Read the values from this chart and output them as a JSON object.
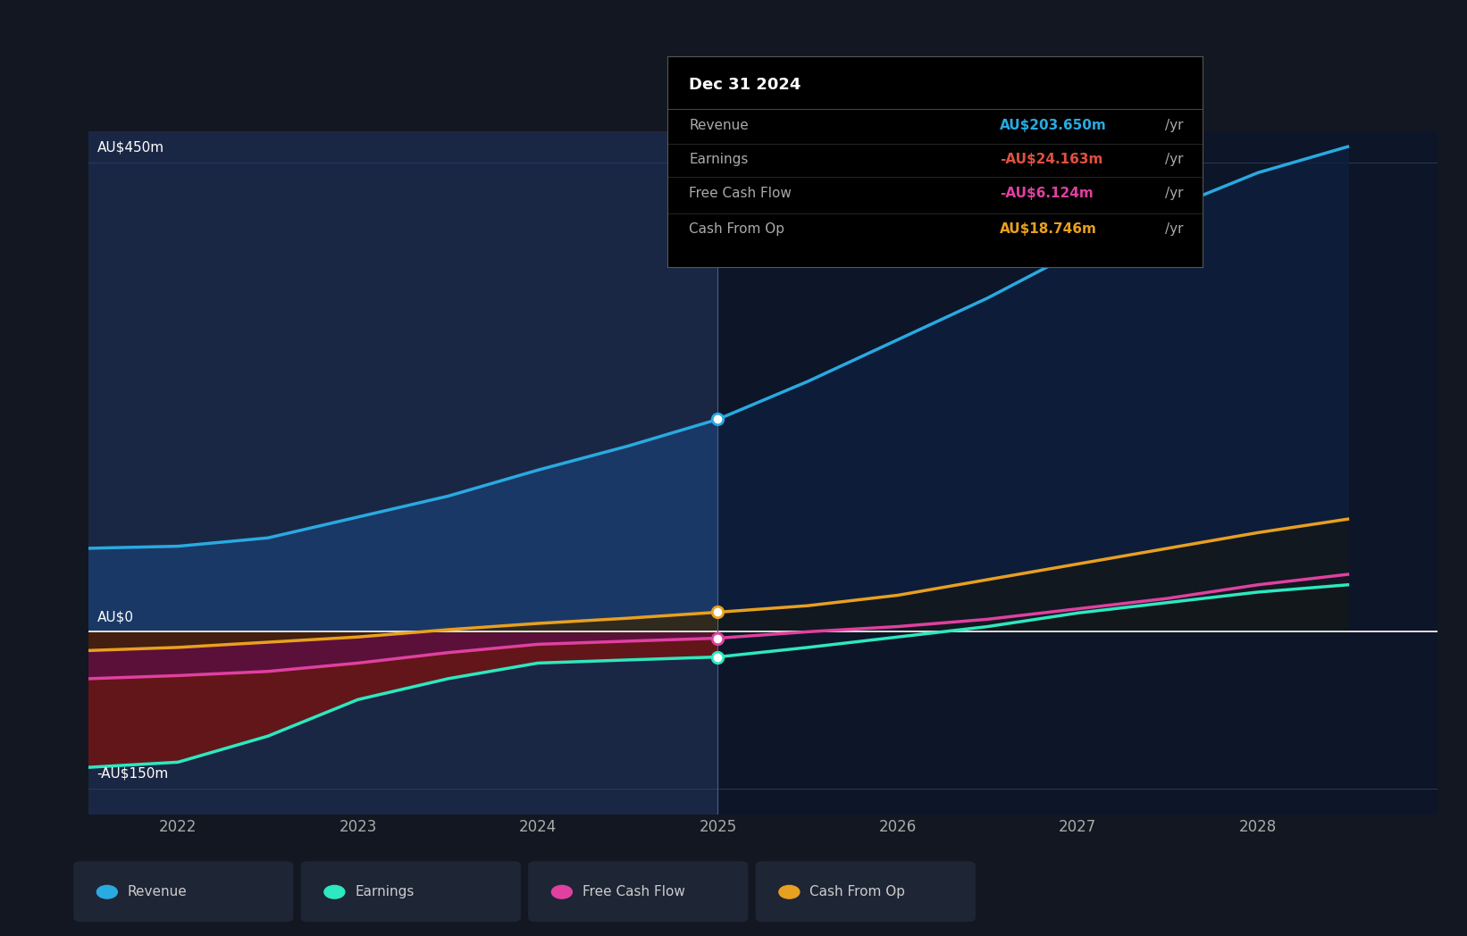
{
  "bg_color": "#131722",
  "past_bg_color": "#1a2744",
  "forecast_bg_color": "#0d1528",
  "grid_color": "#2a3a5a",
  "zero_line_color": "#ffffff",
  "x_min": 2021.5,
  "x_max": 2029.0,
  "y_min": -175,
  "y_max": 480,
  "past_cutoff": 2025.0,
  "yticks": [
    -150,
    0,
    450
  ],
  "ytick_labels": [
    "-AU$150m",
    "AU$0",
    "AU$450m"
  ],
  "xticks": [
    2022,
    2023,
    2024,
    2025,
    2026,
    2027,
    2028
  ],
  "revenue_color": "#29aae1",
  "earnings_color": "#2de8c0",
  "fcf_color": "#e040a0",
  "cashop_color": "#e8a020",
  "revenue_past": [
    [
      2021.5,
      80
    ],
    [
      2022.0,
      82
    ],
    [
      2022.5,
      90
    ],
    [
      2023.0,
      110
    ],
    [
      2023.5,
      130
    ],
    [
      2024.0,
      155
    ],
    [
      2024.5,
      178
    ],
    [
      2025.0,
      203.65
    ]
  ],
  "revenue_future": [
    [
      2025.0,
      203.65
    ],
    [
      2025.5,
      240
    ],
    [
      2026.0,
      280
    ],
    [
      2026.5,
      320
    ],
    [
      2027.0,
      365
    ],
    [
      2027.5,
      405
    ],
    [
      2028.0,
      440
    ],
    [
      2028.5,
      465
    ]
  ],
  "earnings_past": [
    [
      2021.5,
      -130
    ],
    [
      2022.0,
      -125
    ],
    [
      2022.5,
      -100
    ],
    [
      2023.0,
      -65
    ],
    [
      2023.5,
      -45
    ],
    [
      2024.0,
      -30
    ],
    [
      2024.5,
      -27
    ],
    [
      2025.0,
      -24.163
    ]
  ],
  "earnings_future": [
    [
      2025.0,
      -24.163
    ],
    [
      2025.5,
      -15
    ],
    [
      2026.0,
      -5
    ],
    [
      2026.5,
      5
    ],
    [
      2027.0,
      18
    ],
    [
      2027.5,
      28
    ],
    [
      2028.0,
      38
    ],
    [
      2028.5,
      45
    ]
  ],
  "fcf_past": [
    [
      2021.5,
      -45
    ],
    [
      2022.0,
      -42
    ],
    [
      2022.5,
      -38
    ],
    [
      2023.0,
      -30
    ],
    [
      2023.5,
      -20
    ],
    [
      2024.0,
      -12
    ],
    [
      2024.5,
      -9
    ],
    [
      2025.0,
      -6.124
    ]
  ],
  "fcf_future": [
    [
      2025.0,
      -6.124
    ],
    [
      2025.5,
      0
    ],
    [
      2026.0,
      5
    ],
    [
      2026.5,
      12
    ],
    [
      2027.0,
      22
    ],
    [
      2027.5,
      32
    ],
    [
      2028.0,
      45
    ],
    [
      2028.5,
      55
    ]
  ],
  "cashop_past": [
    [
      2021.5,
      -18
    ],
    [
      2022.0,
      -15
    ],
    [
      2022.5,
      -10
    ],
    [
      2023.0,
      -5
    ],
    [
      2023.5,
      2
    ],
    [
      2024.0,
      8
    ],
    [
      2024.5,
      13
    ],
    [
      2025.0,
      18.746
    ]
  ],
  "cashop_future": [
    [
      2025.0,
      18.746
    ],
    [
      2025.5,
      25
    ],
    [
      2026.0,
      35
    ],
    [
      2026.5,
      50
    ],
    [
      2027.0,
      65
    ],
    [
      2027.5,
      80
    ],
    [
      2028.0,
      95
    ],
    [
      2028.5,
      108
    ]
  ],
  "tooltip_title": "Dec 31 2024",
  "tooltip_items": [
    {
      "label": "Revenue",
      "value": "AU$203.650m",
      "value_color": "#29aae1",
      "suffix": " /yr"
    },
    {
      "label": "Earnings",
      "value": "-AU$24.163m",
      "value_color": "#e05040",
      "suffix": " /yr"
    },
    {
      "label": "Free Cash Flow",
      "value": "-AU$6.124m",
      "value_color": "#e040a0",
      "suffix": " /yr"
    },
    {
      "label": "Cash From Op",
      "value": "AU$18.746m",
      "value_color": "#e8a020",
      "suffix": " /yr"
    }
  ],
  "legend_items": [
    {
      "label": "Revenue",
      "color": "#29aae1"
    },
    {
      "label": "Earnings",
      "color": "#2de8c0"
    },
    {
      "label": "Free Cash Flow",
      "color": "#e040a0"
    },
    {
      "label": "Cash From Op",
      "color": "#e8a020"
    }
  ]
}
